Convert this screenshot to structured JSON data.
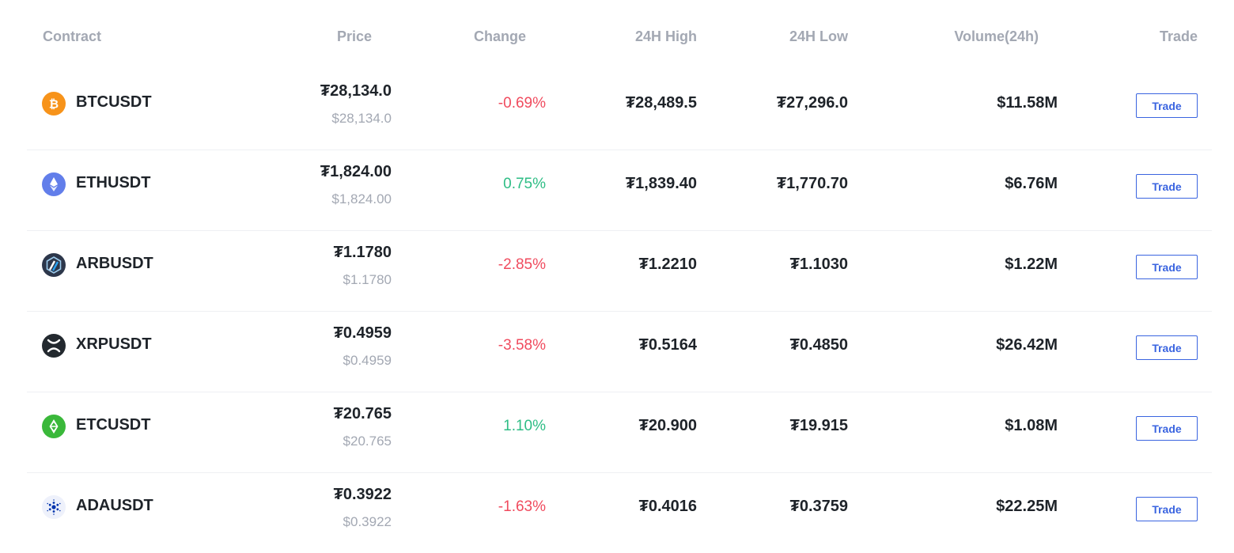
{
  "table": {
    "headers": {
      "contract": "Contract",
      "price": "Price",
      "change": "Change",
      "high": "24H High",
      "low": "24H Low",
      "volume": "Volume(24h)",
      "trade": "Trade"
    },
    "rows": [
      {
        "symbol": "BTCUSDT",
        "icon": "bitcoin-icon",
        "price": "₮28,134.0",
        "price_usd": "$28,134.0",
        "change": "-0.69%",
        "direction": "down",
        "high": "₮28,489.5",
        "low": "₮27,296.0",
        "volume": "$11.58M",
        "trade_label": "Trade"
      },
      {
        "symbol": "ETHUSDT",
        "icon": "ethereum-icon",
        "price": "₮1,824.00",
        "price_usd": "$1,824.00",
        "change": "0.75%",
        "direction": "up",
        "high": "₮1,839.40",
        "low": "₮1,770.70",
        "volume": "$6.76M",
        "trade_label": "Trade"
      },
      {
        "symbol": "ARBUSDT",
        "icon": "arbitrum-icon",
        "price": "₮1.1780",
        "price_usd": "$1.1780",
        "change": "-2.85%",
        "direction": "down",
        "high": "₮1.2210",
        "low": "₮1.1030",
        "volume": "$1.22M",
        "trade_label": "Trade"
      },
      {
        "symbol": "XRPUSDT",
        "icon": "xrp-icon",
        "price": "₮0.4959",
        "price_usd": "$0.4959",
        "change": "-3.58%",
        "direction": "down",
        "high": "₮0.5164",
        "low": "₮0.4850",
        "volume": "$26.42M",
        "trade_label": "Trade"
      },
      {
        "symbol": "ETCUSDT",
        "icon": "ethereum-classic-icon",
        "price": "₮20.765",
        "price_usd": "$20.765",
        "change": "1.10%",
        "direction": "up",
        "high": "₮20.900",
        "low": "₮19.915",
        "volume": "$1.08M",
        "trade_label": "Trade"
      },
      {
        "symbol": "ADAUSDT",
        "icon": "cardano-icon",
        "price": "₮0.3922",
        "price_usd": "$0.3922",
        "change": "-1.63%",
        "direction": "down",
        "high": "₮0.4016",
        "low": "₮0.3759",
        "volume": "$22.25M",
        "trade_label": "Trade"
      }
    ]
  },
  "colors": {
    "up": "#2ebd85",
    "down": "#f04b5e",
    "accent": "#3a64e0",
    "header_text": "#a3a8b3"
  }
}
